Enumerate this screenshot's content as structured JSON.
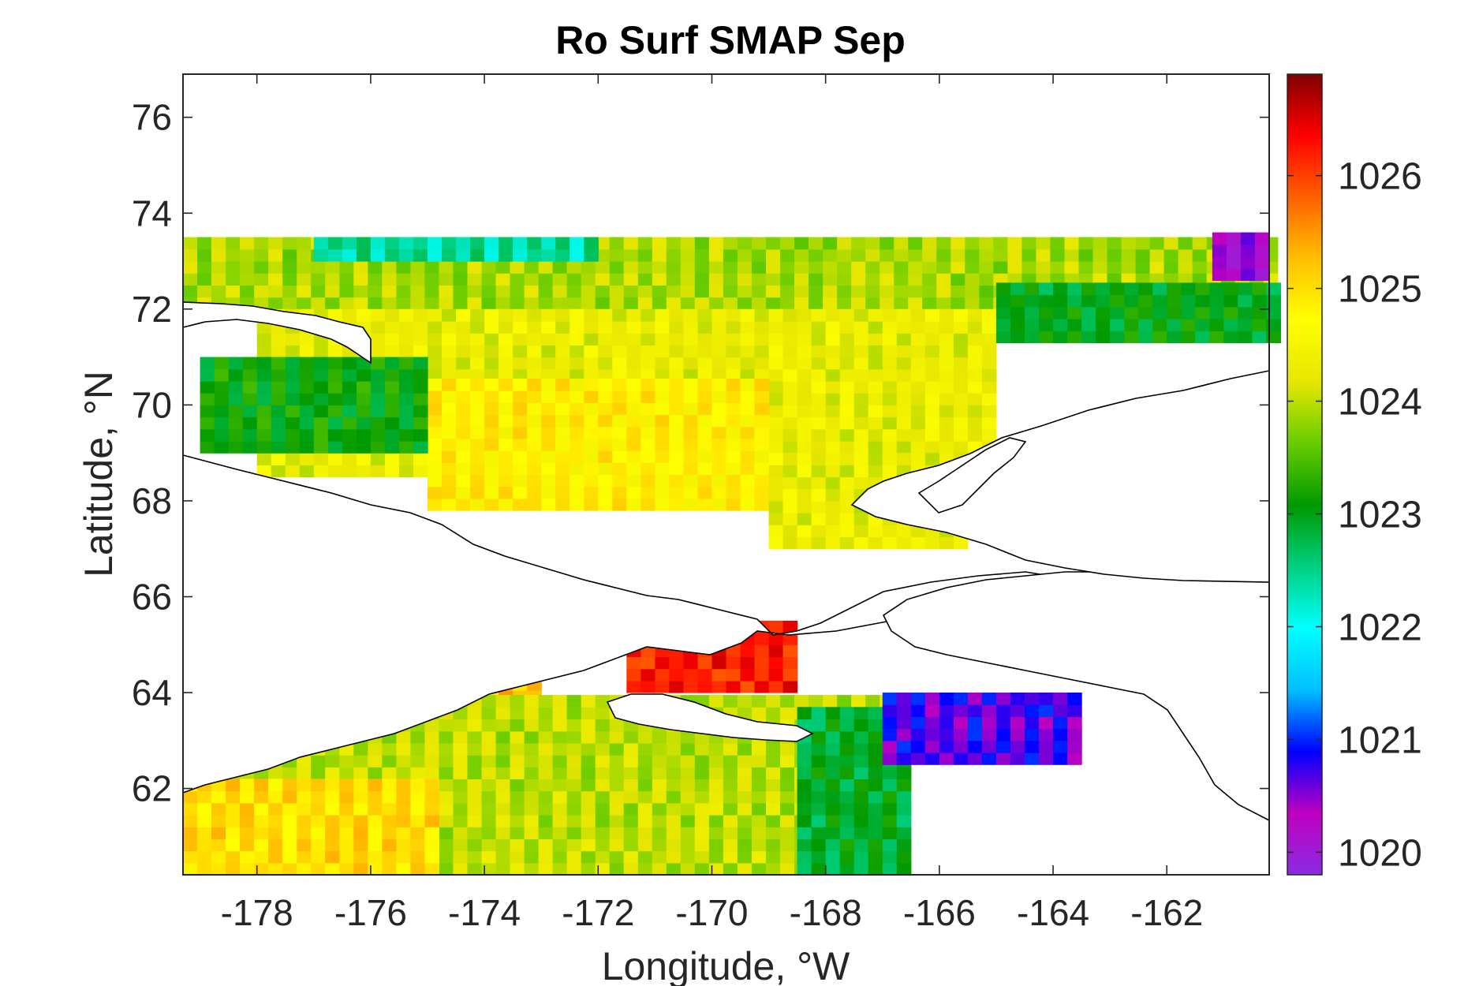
{
  "chart_data": {
    "type": "heatmap",
    "title": "Ro Surf SMAP Sep",
    "xlabel": "Longitude, °W",
    "ylabel": "Latitude, °N",
    "xlim": [
      -179.3,
      -160.2
    ],
    "ylim": [
      60.2,
      76.9
    ],
    "x_ticks": [
      -178,
      -176,
      -174,
      -172,
      -170,
      -168,
      -166,
      -164,
      -162
    ],
    "x_tick_labels": [
      "-178",
      "-176",
      "-174",
      "-172",
      "-170",
      "-168",
      "-166",
      "-164",
      "-162"
    ],
    "y_ticks": [
      62,
      64,
      66,
      68,
      70,
      72,
      74,
      76
    ],
    "y_tick_labels": [
      "62",
      "64",
      "66",
      "68",
      "70",
      "72",
      "74",
      "76"
    ],
    "colorbar": {
      "min": 1019.8,
      "max": 1026.9,
      "ticks": [
        1020,
        1021,
        1022,
        1023,
        1024,
        1025,
        1026
      ],
      "tick_labels": [
        "1020",
        "1021",
        "1022",
        "1023",
        "1024",
        "1025",
        "1026"
      ],
      "colormap": [
        "#8a2be2",
        "#c000c0",
        "#0000ff",
        "#00bfff",
        "#00ffff",
        "#00d080",
        "#009900",
        "#66cc00",
        "#e6e600",
        "#ffff00",
        "#ffc000",
        "#ff6000",
        "#ff0000",
        "#800000"
      ]
    },
    "regions": [
      {
        "name": "chukchi-north-band",
        "lon": [
          -179.3,
          -160.2
        ],
        "lat": [
          72.0,
          73.5
        ],
        "value": 1023.9
      },
      {
        "name": "chukchi-central",
        "lon": [
          -178.0,
          -165.0
        ],
        "lat": [
          68.5,
          72.0
        ],
        "value": 1024.3
      },
      {
        "name": "chukchi-southwest-yellow",
        "lon": [
          -175.0,
          -169.0
        ],
        "lat": [
          67.8,
          70.5
        ],
        "value": 1024.8
      },
      {
        "name": "kotzebue-coast",
        "lon": [
          -169.0,
          -165.5
        ],
        "lat": [
          67.0,
          69.0
        ],
        "value": 1024.3
      },
      {
        "name": "west-cyan-pocket",
        "lon": [
          -179.0,
          -175.0
        ],
        "lat": [
          69.0,
          71.0
        ],
        "value": 1023.1
      },
      {
        "name": "north-blue-strip",
        "lon": [
          -177.0,
          -172.0
        ],
        "lat": [
          73.0,
          73.5
        ],
        "value": 1022.4
      },
      {
        "name": "east-cyan-strip",
        "lon": [
          -165.0,
          -160.2
        ],
        "lat": [
          71.3,
          72.5
        ],
        "value": 1023.0
      },
      {
        "name": "bering-north-red",
        "lon": [
          -171.5,
          -168.5
        ],
        "lat": [
          64.0,
          65.5
        ],
        "value": 1026.2
      },
      {
        "name": "bering-west-yellow",
        "lon": [
          -179.0,
          -173.0
        ],
        "lat": [
          63.8,
          65.0
        ],
        "value": 1025.2
      },
      {
        "name": "bering-central",
        "lon": [
          -179.3,
          -167.0
        ],
        "lat": [
          60.2,
          63.8
        ],
        "value": 1024.0
      },
      {
        "name": "bering-southwest-yellow",
        "lon": [
          -179.3,
          -175.0
        ],
        "lat": [
          60.2,
          62.0
        ],
        "value": 1025.0
      },
      {
        "name": "bering-east-cyan",
        "lon": [
          -168.5,
          -166.5
        ],
        "lat": [
          60.2,
          63.5
        ],
        "value": 1022.9
      },
      {
        "name": "norton-sound-purple",
        "lon": [
          -167.0,
          -163.5
        ],
        "lat": [
          62.5,
          64.0
        ],
        "value": 1020.7
      },
      {
        "name": "northeast-purple",
        "lon": [
          -161.2,
          -160.4
        ],
        "lat": [
          72.6,
          73.4
        ],
        "value": 1020.3
      }
    ]
  }
}
